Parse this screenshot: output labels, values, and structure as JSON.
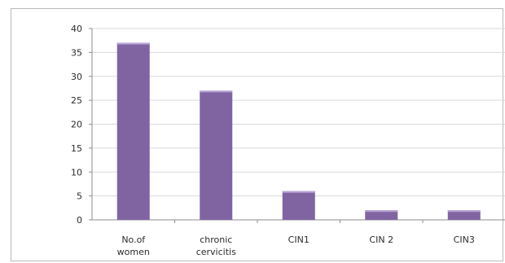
{
  "chart_data": {
    "type": "bar",
    "categories": [
      "No.of women",
      "chronic cervicitis",
      "CIN1",
      "CIN 2",
      "CIN3"
    ],
    "values": [
      37,
      27,
      6,
      2,
      2
    ],
    "ylim": [
      0,
      40
    ],
    "yticks": [
      0,
      5,
      10,
      15,
      20,
      25,
      30,
      35,
      40
    ],
    "grid": true,
    "legend": "none",
    "bar_color": "#8064a2",
    "bar_top_color": "#b7a4d6"
  }
}
